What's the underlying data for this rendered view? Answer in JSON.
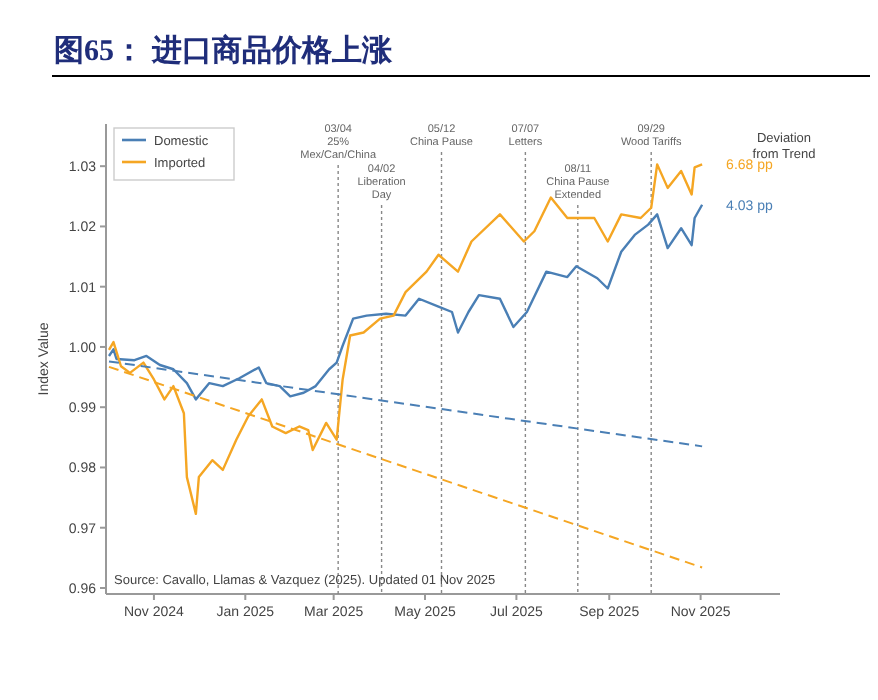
{
  "chart_data": {
    "type": "line",
    "title": "图65：  进口商品价格上涨",
    "ylabel": "Index Value",
    "xlim": [
      "2024-09-30",
      "2025-12-24"
    ],
    "ylim": [
      0.959,
      1.037
    ],
    "xticks": [
      {
        "value": "2024-11-01",
        "label": "Nov 2024"
      },
      {
        "value": "2025-01-01",
        "label": "Jan 2025"
      },
      {
        "value": "2025-03-01",
        "label": "Mar 2025"
      },
      {
        "value": "2025-05-01",
        "label": "May 2025"
      },
      {
        "value": "2025-07-01",
        "label": "Jul 2025"
      },
      {
        "value": "2025-09-01",
        "label": "Sep 2025"
      },
      {
        "value": "2025-11-01",
        "label": "Nov 2025"
      }
    ],
    "yticks": [
      0.96,
      0.97,
      0.98,
      0.99,
      {
        "value": 1.0,
        "label": "1.00"
      },
      1.01,
      1.02,
      1.03
    ],
    "legend": "top left",
    "grid": false,
    "series": [
      {
        "name": "Domestic",
        "color": "#4a7fb5",
        "x": [
          "2024-10-02",
          "2024-10-05",
          "2024-10-07",
          "2024-10-19",
          "2024-10-27",
          "2024-11-05",
          "2024-11-14",
          "2024-11-23",
          "2024-11-29",
          "2024-12-08",
          "2024-12-17",
          "2024-12-28",
          "2025-01-10",
          "2025-01-15",
          "2025-01-24",
          "2025-01-31",
          "2025-02-09",
          "2025-02-17",
          "2025-02-26",
          "2025-03-03",
          "2025-03-07",
          "2025-03-14",
          "2025-03-23",
          "2025-04-05",
          "2025-04-18",
          "2025-04-27",
          "2025-05-10",
          "2025-05-19",
          "2025-05-23",
          "2025-05-30",
          "2025-06-06",
          "2025-06-20",
          "2025-06-29",
          "2025-07-08",
          "2025-07-21",
          "2025-08-04",
          "2025-08-10",
          "2025-08-24",
          "2025-08-31",
          "2025-09-09",
          "2025-09-18",
          "2025-09-27",
          "2025-10-03",
          "2025-10-10",
          "2025-10-19",
          "2025-10-26",
          "2025-10-28",
          "2025-11-02"
        ],
        "values": [
          0.9985,
          0.9996,
          0.998,
          0.9978,
          0.9985,
          0.997,
          0.9963,
          0.994,
          0.9913,
          0.994,
          0.9935,
          0.9948,
          0.9966,
          0.994,
          0.9935,
          0.9918,
          0.9924,
          0.9935,
          0.9963,
          0.9974,
          1.0002,
          1.0047,
          1.0052,
          1.0055,
          1.0052,
          1.008,
          1.0067,
          1.0058,
          1.0024,
          1.0058,
          1.0086,
          1.008,
          1.0033,
          1.0058,
          1.0125,
          1.0116,
          1.0134,
          1.0114,
          1.0097,
          1.0158,
          1.0186,
          1.0203,
          1.022,
          1.0164,
          1.0197,
          1.0169,
          1.0214,
          1.0236
        ]
      },
      {
        "name": "Imported",
        "color": "#f5a623",
        "x": [
          "2024-10-02",
          "2024-10-05",
          "2024-10-10",
          "2024-10-16",
          "2024-10-25",
          "2024-11-01",
          "2024-11-08",
          "2024-11-14",
          "2024-11-21",
          "2024-11-23",
          "2024-11-29",
          "2024-12-01",
          "2024-12-10",
          "2024-12-17",
          "2024-12-26",
          "2025-01-03",
          "2025-01-12",
          "2025-01-19",
          "2025-01-28",
          "2025-02-06",
          "2025-02-12",
          "2025-02-15",
          "2025-02-24",
          "2025-03-03",
          "2025-03-07",
          "2025-03-12",
          "2025-03-21",
          "2025-04-01",
          "2025-04-10",
          "2025-04-18",
          "2025-05-02",
          "2025-05-10",
          "2025-05-23",
          "2025-06-01",
          "2025-06-20",
          "2025-07-06",
          "2025-07-13",
          "2025-07-24",
          "2025-08-04",
          "2025-08-22",
          "2025-08-31",
          "2025-09-09",
          "2025-09-22",
          "2025-09-29",
          "2025-10-03",
          "2025-10-10",
          "2025-10-19",
          "2025-10-26",
          "2025-10-28",
          "2025-11-02"
        ],
        "values": [
          0.9995,
          1.0008,
          0.9968,
          0.9957,
          0.9974,
          0.9946,
          0.9913,
          0.9935,
          0.989,
          0.9784,
          0.9723,
          0.9784,
          0.9812,
          0.9796,
          0.9846,
          0.9885,
          0.9913,
          0.9868,
          0.9857,
          0.9868,
          0.9862,
          0.9829,
          0.9874,
          0.9846,
          0.9946,
          1.0019,
          1.0024,
          1.0047,
          1.0052,
          1.0091,
          1.0125,
          1.0153,
          1.0125,
          1.0175,
          1.022,
          1.0175,
          1.0192,
          1.0248,
          1.0214,
          1.0214,
          1.0175,
          1.022,
          1.0214,
          1.0231,
          1.0303,
          1.0264,
          1.0292,
          1.0253,
          1.0298,
          1.0303
        ]
      },
      {
        "color": "#4a7fb5",
        "line_style": "dashed",
        "x": [
          "2024-10-02",
          "2025-11-02"
        ],
        "values": [
          0.9976,
          0.9835
        ]
      },
      {
        "color": "#f5a623",
        "line_style": "dashed",
        "x": [
          "2024-10-02",
          "2025-11-02"
        ],
        "values": [
          0.9967,
          0.9634
        ]
      }
    ],
    "ref_lines": [
      {
        "axis": "x",
        "value": "2025-03-04",
        "label": "03/04 25% Mex/Can/China"
      },
      {
        "axis": "x",
        "value": "2025-04-02",
        "label": "04/02 Liberation Day"
      },
      {
        "axis": "x",
        "value": "2025-05-12",
        "label": "05/12 China Pause"
      },
      {
        "axis": "x",
        "value": "2025-07-07",
        "label": "07/07 Letters"
      },
      {
        "axis": "x",
        "value": "2025-08-11",
        "label": "08/11 China Pause Extended"
      },
      {
        "axis": "x",
        "value": "2025-09-29",
        "label": "09/29 Wood Tariffs"
      }
    ],
    "annotations": [
      "Source: Cavallo, Llamas & Vazquez (2025). Updated 01 Nov 2025",
      "Deviation from Trend",
      {
        "text": "6.68 pp",
        "x": "2025-11-02",
        "y": 1.0303
      },
      {
        "text": "4.03 pp",
        "x": "2025-11-02",
        "y": 1.0236
      }
    ]
  }
}
